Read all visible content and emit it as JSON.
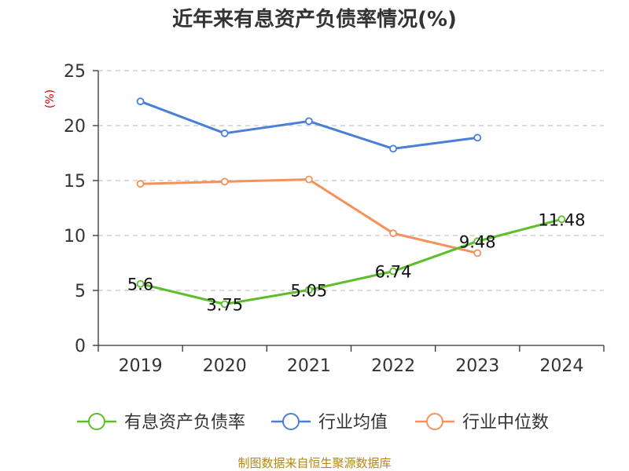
{
  "chart_data": {
    "type": "line",
    "title": "近年来有息资产负债率情况(%)",
    "ylabel": "(%)",
    "xlabel": "",
    "ylim": [
      0,
      25
    ],
    "yticks": [
      0,
      5,
      10,
      15,
      20,
      25
    ],
    "categories": [
      "2019",
      "2020",
      "2021",
      "2022",
      "2023",
      "2024"
    ],
    "grid": true,
    "legend_position": "bottom",
    "series": [
      {
        "name": "有息资产负债率",
        "color": "#5cbf2a",
        "values": [
          5.6,
          3.75,
          5.05,
          6.74,
          9.48,
          11.48
        ],
        "labels": [
          "5.6",
          "3.75",
          "5.05",
          "6.74",
          "9.48",
          "11.48"
        ]
      },
      {
        "name": "行业均值",
        "color": "#4a7fd8",
        "values": [
          22.2,
          19.3,
          20.4,
          17.9,
          18.9,
          null
        ]
      },
      {
        "name": "行业中位数",
        "color": "#f5915c",
        "values": [
          14.7,
          14.9,
          15.1,
          10.2,
          8.4,
          null
        ]
      }
    ],
    "source": "制图数据来自恒生聚源数据库"
  }
}
